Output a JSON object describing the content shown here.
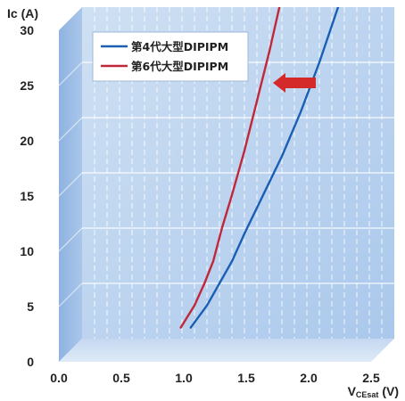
{
  "chart_data": {
    "type": "line",
    "xlim": [
      0,
      2.5
    ],
    "ylim": [
      0,
      30
    ],
    "x_ticks": [
      "0.0",
      "0.5",
      "1.0",
      "1.5",
      "2.0",
      "2.5"
    ],
    "y_ticks": [
      "0",
      "5",
      "10",
      "15",
      "20",
      "25",
      "30"
    ],
    "ylabel": "Ic (A)",
    "xlabel_main": "V",
    "xlabel_sub": "CEsat",
    "xlabel_unit": " (V)",
    "grid": true,
    "legend_position": "top-left",
    "annotation": "arrow pointing left toward the 6th gen curve",
    "series": [
      {
        "name": "第4代大型DIPIPM",
        "color": "#1a5fb4",
        "points": [
          [
            0.87,
            1
          ],
          [
            1.0,
            3
          ],
          [
            1.1,
            5
          ],
          [
            1.2,
            7
          ],
          [
            1.3,
            9.5
          ],
          [
            1.45,
            13
          ],
          [
            1.6,
            16.5
          ],
          [
            1.75,
            20.5
          ],
          [
            1.9,
            25
          ],
          [
            2.05,
            30
          ],
          [
            2.12,
            32.5
          ]
        ]
      },
      {
        "name": "第6代大型DIPIPM",
        "color": "#c0283a",
        "points": [
          [
            0.79,
            1
          ],
          [
            0.9,
            3
          ],
          [
            0.98,
            5
          ],
          [
            1.05,
            7
          ],
          [
            1.12,
            10
          ],
          [
            1.2,
            13
          ],
          [
            1.3,
            17
          ],
          [
            1.4,
            21.5
          ],
          [
            1.5,
            26
          ],
          [
            1.58,
            30
          ],
          [
            1.63,
            33
          ]
        ]
      }
    ]
  }
}
